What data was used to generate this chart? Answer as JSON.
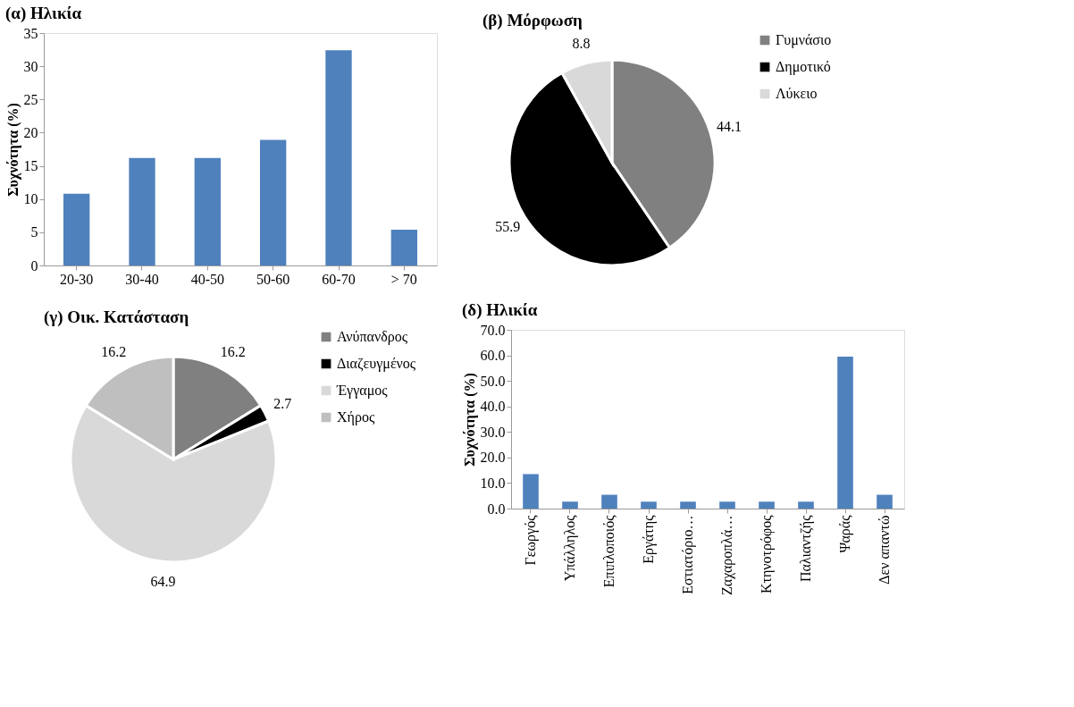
{
  "chart_data": [
    {
      "type": "bar",
      "title": "(α) Ηλικία",
      "ylabel": "Συχνότητα (%)",
      "categories": [
        "20-30",
        "30-40",
        "40-50",
        "50-60",
        "60-70",
        "> 70"
      ],
      "values": [
        10.8,
        16.2,
        16.2,
        18.9,
        32.4,
        5.4
      ],
      "color": "#4f81bd",
      "ylim": [
        0,
        35
      ],
      "yticks": [
        0,
        5,
        10,
        15,
        20,
        25,
        30,
        35
      ]
    },
    {
      "type": "pie",
      "title": "(β) Μόρφωση",
      "categories": [
        "Γυμνάσιο",
        "Δημοτικό",
        "Λύκειο"
      ],
      "values": [
        44.1,
        55.9,
        8.8
      ],
      "colors": [
        "#808080",
        "#000000",
        "#d9d9d9"
      ],
      "data_labels": true,
      "legend": "right"
    },
    {
      "type": "pie",
      "title": "(γ) Οικ. Κατάσταση",
      "categories": [
        "Ανύπανδρος",
        "Διαζευγμένος",
        "Έγγαμος",
        "Χήρος"
      ],
      "values": [
        16.2,
        2.7,
        64.9,
        16.2
      ],
      "colors": [
        "#808080",
        "#000000",
        "#d9d9d9",
        "#bfbfbf"
      ],
      "data_labels": true,
      "legend": "right"
    },
    {
      "type": "bar",
      "title": "(δ) Ηλικία",
      "ylabel": "Συχνότητα (%)",
      "categories": [
        "Γεωργός",
        "Υπάλληλος",
        "Επιπλοποιός",
        "Εργάτης",
        "Εστιατόριο…",
        "Ζαχαροπλά…",
        "Κτηνοτρόφος",
        "Παλιαντζής",
        "Ψαράς",
        "Δεν απαντώ"
      ],
      "values": [
        13.5,
        2.7,
        5.4,
        2.7,
        2.7,
        2.7,
        2.7,
        2.7,
        59.5,
        5.4
      ],
      "color": "#4f81bd",
      "ylim": [
        0,
        70
      ],
      "yticks": [
        {
          "value": 0,
          "label": "0.0"
        },
        {
          "value": 10,
          "label": "10.0"
        },
        {
          "value": 20,
          "label": "20.0"
        },
        {
          "value": 30,
          "label": "30.0"
        },
        {
          "value": 40,
          "label": "40.0"
        },
        {
          "value": 50,
          "label": "50.0"
        },
        {
          "value": 60,
          "label": "60.0"
        },
        {
          "value": 70,
          "label": "70.0"
        }
      ]
    }
  ]
}
